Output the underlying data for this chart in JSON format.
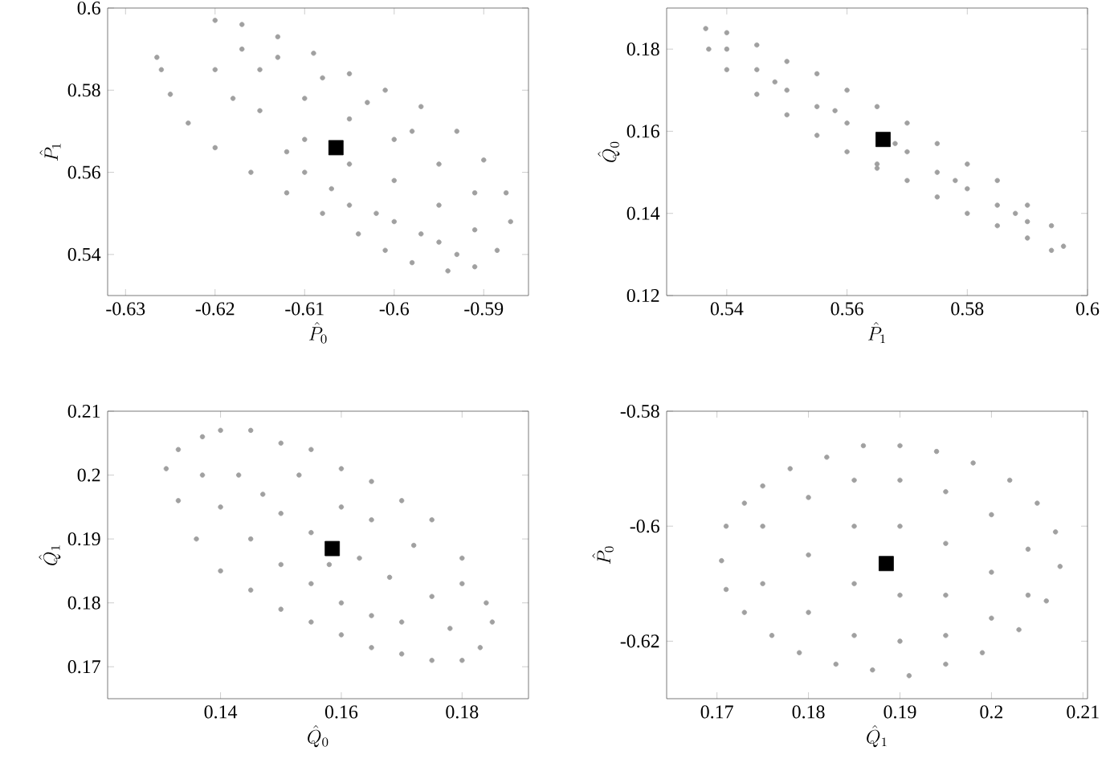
{
  "chart_data": [
    {
      "type": "scatter",
      "xlabel": "\\hat{P}_0",
      "ylabel": "\\hat{P}_1",
      "xlim": [
        -0.632,
        -0.585
      ],
      "ylim": [
        0.53,
        0.6
      ],
      "xticks": [
        -0.63,
        -0.62,
        -0.61,
        -0.6,
        -0.59
      ],
      "yticks": [
        0.54,
        0.56,
        0.58,
        0.6
      ],
      "series": [
        {
          "color": "#a0a0a0",
          "marker": "circle",
          "x": [
            -0.6265,
            -0.62,
            -0.617,
            -0.613,
            -0.609,
            -0.605,
            -0.601,
            -0.597,
            -0.593,
            -0.59,
            -0.5875,
            -0.587,
            -0.5885,
            -0.591,
            -0.594,
            -0.598,
            -0.601,
            -0.604,
            -0.608,
            -0.612,
            -0.616,
            -0.62,
            -0.623,
            -0.625,
            -0.626,
            -0.62,
            -0.615,
            -0.615,
            -0.61,
            -0.61,
            -0.61,
            -0.605,
            -0.605,
            -0.605,
            -0.6,
            -0.6,
            -0.6,
            -0.595,
            -0.595,
            -0.595,
            -0.591,
            -0.591,
            -0.618,
            -0.613,
            -0.617,
            -0.608,
            -0.603,
            -0.598,
            -0.612,
            -0.607,
            -0.602,
            -0.597,
            -0.593
          ],
          "values": [
            0.588,
            0.597,
            0.596,
            0.593,
            0.589,
            0.584,
            0.58,
            0.576,
            0.57,
            0.563,
            0.555,
            0.548,
            0.541,
            0.537,
            0.536,
            0.538,
            0.541,
            0.545,
            0.55,
            0.555,
            0.56,
            0.566,
            0.572,
            0.579,
            0.585,
            0.585,
            0.585,
            0.575,
            0.578,
            0.568,
            0.56,
            0.573,
            0.562,
            0.552,
            0.568,
            0.558,
            0.548,
            0.562,
            0.552,
            0.543,
            0.555,
            0.546,
            0.578,
            0.588,
            0.59,
            0.583,
            0.577,
            0.57,
            0.565,
            0.556,
            0.55,
            0.545,
            0.54
          ]
        },
        {
          "color": "#000000",
          "marker": "square",
          "x": [
            -0.6065
          ],
          "values": [
            0.566
          ]
        }
      ]
    },
    {
      "type": "scatter",
      "xlabel": "\\hat{P}_1",
      "ylabel": "\\hat{Q}_0",
      "xlim": [
        0.53,
        0.6
      ],
      "ylim": [
        0.12,
        0.19
      ],
      "xticks": [
        0.54,
        0.56,
        0.58,
        0.6
      ],
      "yticks": [
        0.12,
        0.14,
        0.16,
        0.18
      ],
      "series": [
        {
          "color": "#a0a0a0",
          "marker": "circle",
          "x": [
            0.5365,
            0.54,
            0.545,
            0.55,
            0.555,
            0.56,
            0.565,
            0.57,
            0.575,
            0.58,
            0.585,
            0.59,
            0.594,
            0.596,
            0.594,
            0.59,
            0.585,
            0.58,
            0.575,
            0.57,
            0.565,
            0.56,
            0.555,
            0.55,
            0.545,
            0.54,
            0.537,
            0.54,
            0.545,
            0.55,
            0.555,
            0.56,
            0.565,
            0.57,
            0.575,
            0.58,
            0.585,
            0.59,
            0.548,
            0.558,
            0.568,
            0.578,
            0.588
          ],
          "values": [
            0.185,
            0.184,
            0.181,
            0.177,
            0.174,
            0.17,
            0.166,
            0.162,
            0.157,
            0.152,
            0.148,
            0.142,
            0.137,
            0.132,
            0.131,
            0.134,
            0.137,
            0.14,
            0.144,
            0.148,
            0.151,
            0.155,
            0.159,
            0.164,
            0.169,
            0.175,
            0.18,
            0.18,
            0.175,
            0.17,
            0.166,
            0.162,
            0.152,
            0.155,
            0.15,
            0.146,
            0.142,
            0.138,
            0.172,
            0.165,
            0.157,
            0.148,
            0.14
          ]
        },
        {
          "color": "#000000",
          "marker": "square",
          "x": [
            0.566
          ],
          "values": [
            0.158
          ]
        }
      ]
    },
    {
      "type": "scatter",
      "xlabel": "\\hat{Q}_0",
      "ylabel": "\\hat{Q}_1",
      "xlim": [
        0.1213,
        0.191
      ],
      "ylim": [
        0.165,
        0.21
      ],
      "xticks": [
        0.14,
        0.16,
        0.18
      ],
      "yticks": [
        0.17,
        0.18,
        0.19,
        0.2,
        0.21
      ],
      "series": [
        {
          "color": "#a0a0a0",
          "marker": "circle",
          "x": [
            0.131,
            0.133,
            0.137,
            0.14,
            0.145,
            0.15,
            0.155,
            0.16,
            0.165,
            0.17,
            0.175,
            0.18,
            0.184,
            0.185,
            0.183,
            0.18,
            0.175,
            0.17,
            0.165,
            0.16,
            0.155,
            0.15,
            0.145,
            0.14,
            0.136,
            0.133,
            0.137,
            0.14,
            0.143,
            0.145,
            0.147,
            0.15,
            0.15,
            0.153,
            0.155,
            0.155,
            0.16,
            0.16,
            0.163,
            0.165,
            0.165,
            0.168,
            0.17,
            0.172,
            0.175,
            0.178,
            0.18,
            0.158
          ],
          "values": [
            0.201,
            0.204,
            0.206,
            0.207,
            0.207,
            0.205,
            0.204,
            0.201,
            0.199,
            0.196,
            0.193,
            0.187,
            0.18,
            0.177,
            0.173,
            0.171,
            0.171,
            0.172,
            0.173,
            0.175,
            0.177,
            0.179,
            0.182,
            0.185,
            0.19,
            0.196,
            0.2,
            0.195,
            0.2,
            0.19,
            0.197,
            0.186,
            0.194,
            0.2,
            0.183,
            0.191,
            0.18,
            0.195,
            0.187,
            0.178,
            0.193,
            0.184,
            0.177,
            0.189,
            0.181,
            0.176,
            0.183,
            0.186
          ]
        },
        {
          "color": "#000000",
          "marker": "square",
          "x": [
            0.1585
          ],
          "values": [
            0.1885
          ]
        }
      ]
    },
    {
      "type": "scatter",
      "xlabel": "\\hat{Q}_1",
      "ylabel": "\\hat{P}_0",
      "xlim": [
        0.1645,
        0.2105
      ],
      "ylim": [
        -0.63,
        -0.58
      ],
      "xticks": [
        0.17,
        0.18,
        0.19,
        0.2,
        0.21
      ],
      "yticks": [
        -0.62,
        -0.6,
        -0.58
      ],
      "series": [
        {
          "color": "#a0a0a0",
          "marker": "circle",
          "x": [
            0.1705,
            0.171,
            0.173,
            0.175,
            0.178,
            0.182,
            0.186,
            0.19,
            0.194,
            0.198,
            0.202,
            0.205,
            0.207,
            0.2075,
            0.206,
            0.203,
            0.199,
            0.195,
            0.191,
            0.187,
            0.183,
            0.179,
            0.176,
            0.173,
            0.171,
            0.175,
            0.175,
            0.18,
            0.18,
            0.18,
            0.185,
            0.185,
            0.185,
            0.185,
            0.19,
            0.19,
            0.19,
            0.19,
            0.195,
            0.195,
            0.195,
            0.195,
            0.2,
            0.2,
            0.2,
            0.204,
            0.204
          ],
          "values": [
            -0.606,
            -0.6,
            -0.596,
            -0.593,
            -0.59,
            -0.588,
            -0.586,
            -0.586,
            -0.587,
            -0.589,
            -0.592,
            -0.596,
            -0.601,
            -0.607,
            -0.613,
            -0.618,
            -0.622,
            -0.624,
            -0.626,
            -0.625,
            -0.624,
            -0.622,
            -0.619,
            -0.615,
            -0.611,
            -0.6,
            -0.61,
            -0.595,
            -0.605,
            -0.615,
            -0.592,
            -0.6,
            -0.61,
            -0.619,
            -0.592,
            -0.6,
            -0.612,
            -0.62,
            -0.594,
            -0.603,
            -0.612,
            -0.619,
            -0.598,
            -0.608,
            -0.616,
            -0.604,
            -0.612
          ]
        },
        {
          "color": "#000000",
          "marker": "square",
          "x": [
            0.1885
          ],
          "values": [
            -0.6065
          ]
        }
      ]
    }
  ]
}
